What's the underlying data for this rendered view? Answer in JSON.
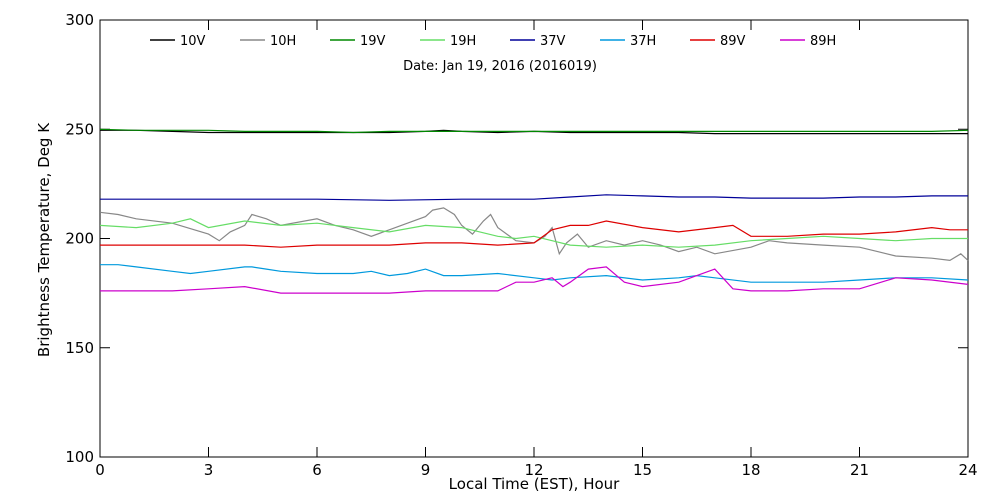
{
  "chart_data": {
    "type": "line",
    "subtitle": "Date: Jan 19, 2016 (2016019)",
    "xlabel": "Local Time (EST), Hour",
    "ylabel": "Brightness Temperature, Deg K",
    "xlim": [
      0,
      24
    ],
    "ylim": [
      100,
      300
    ],
    "xticks": [
      0,
      3,
      6,
      9,
      12,
      15,
      18,
      21,
      24
    ],
    "yticks": [
      100,
      150,
      200,
      250,
      300
    ],
    "grid": false,
    "legend_position": "top",
    "series": [
      {
        "name": "10V",
        "color": "#000000",
        "x": [
          0,
          1,
          2,
          3,
          4,
          5,
          6,
          7,
          8,
          9,
          9.5,
          10,
          11,
          12,
          13,
          14,
          15,
          16,
          17,
          18,
          19,
          20,
          21,
          22,
          23,
          24
        ],
        "y": [
          249.5,
          249.5,
          249.0,
          248.5,
          248.5,
          248.5,
          248.5,
          248.5,
          248.5,
          249.0,
          249.5,
          249.0,
          248.5,
          249.0,
          248.5,
          248.5,
          248.5,
          248.5,
          248.0,
          248.0,
          248.0,
          248.0,
          248.0,
          248.0,
          248.0,
          248.0
        ]
      },
      {
        "name": "10H",
        "color": "#888888",
        "x": [
          0,
          0.5,
          1,
          2,
          3,
          3.3,
          3.6,
          4,
          4.2,
          4.6,
          5,
          6,
          6.5,
          7,
          7.5,
          8,
          8.5,
          9,
          9.2,
          9.5,
          9.8,
          10,
          10.3,
          10.6,
          10.8,
          11,
          11.5,
          12,
          12.3,
          12.5,
          12.7,
          12.9,
          13.2,
          13.5,
          14,
          14.5,
          15,
          15.5,
          16,
          16.5,
          17,
          18,
          18.5,
          19,
          20,
          21,
          21.5,
          22,
          23,
          23.5,
          23.8,
          24
        ],
        "y": [
          212,
          211,
          209,
          207,
          202,
          199,
          203,
          206,
          211,
          209,
          206,
          209,
          206,
          204,
          201,
          204,
          207,
          210,
          213,
          214,
          211,
          206,
          202,
          208,
          211,
          205,
          199,
          198,
          201,
          205,
          193,
          198,
          202,
          196,
          199,
          197,
          199,
          197,
          194,
          196,
          193,
          196,
          199,
          198,
          197,
          196,
          194,
          192,
          191,
          190,
          193,
          190
        ]
      },
      {
        "name": "19V",
        "color": "#008800",
        "x": [
          0,
          1,
          2,
          3,
          4,
          5,
          6,
          7,
          8,
          9,
          10,
          11,
          12,
          13,
          14,
          15,
          16,
          17,
          18,
          19,
          20,
          21,
          22,
          23,
          24
        ],
        "y": [
          250,
          249.5,
          249.5,
          249.5,
          249.0,
          249.0,
          249.0,
          248.5,
          249.0,
          249.0,
          249.0,
          249.0,
          249.0,
          249.0,
          249.0,
          249.0,
          249.0,
          249.0,
          249.0,
          249.0,
          249.0,
          249.0,
          249.0,
          249.0,
          249.5
        ]
      },
      {
        "name": "19H",
        "color": "#66dd66",
        "x": [
          0,
          1,
          2,
          2.5,
          3,
          4,
          5,
          6,
          7,
          8,
          9,
          10,
          10.5,
          11,
          11.5,
          12,
          12.5,
          13,
          14,
          15,
          16,
          17,
          18,
          19,
          20,
          21,
          22,
          23,
          24
        ],
        "y": [
          206,
          205,
          207,
          209,
          205,
          208,
          206,
          207,
          205,
          203,
          206,
          205,
          203,
          201,
          200,
          201,
          199,
          197,
          196,
          197,
          196,
          197,
          199,
          200,
          201,
          200,
          199,
          200,
          200
        ]
      },
      {
        "name": "37V",
        "color": "#000099",
        "x": [
          0,
          2,
          4,
          6,
          8,
          10,
          11,
          12,
          13,
          14,
          15,
          16,
          17,
          18,
          19,
          20,
          21,
          22,
          23,
          24
        ],
        "y": [
          218,
          218,
          218,
          218,
          217.5,
          218,
          218,
          218,
          219,
          220,
          219.5,
          219,
          219,
          218.5,
          218.5,
          218.5,
          219,
          219,
          219.5,
          219.5
        ]
      },
      {
        "name": "37H",
        "color": "#0099dd",
        "x": [
          0,
          0.5,
          1,
          2,
          2.5,
          3,
          4,
          4.2,
          4.6,
          5,
          6,
          7,
          7.5,
          8,
          8.5,
          9,
          9.5,
          10,
          11,
          12,
          12.5,
          13,
          14,
          15,
          16,
          16.5,
          17,
          18,
          19,
          20,
          21,
          22,
          23,
          24
        ],
        "y": [
          188,
          188,
          187,
          185,
          184,
          185,
          187,
          187,
          186,
          185,
          184,
          184,
          185,
          183,
          184,
          186,
          183,
          183,
          184,
          182,
          181,
          182,
          183,
          181,
          182,
          183,
          182,
          180,
          180,
          180,
          181,
          182,
          182,
          181
        ]
      },
      {
        "name": "89V",
        "color": "#dd0000",
        "x": [
          0,
          1,
          2,
          3,
          4,
          5,
          6,
          7,
          8,
          9,
          10,
          11,
          12,
          12.5,
          13,
          13.5,
          14,
          15,
          16,
          17,
          17.5,
          18,
          19,
          20,
          21,
          22,
          23,
          23.5,
          24
        ],
        "y": [
          197,
          197,
          197,
          197,
          197,
          196,
          197,
          197,
          197,
          198,
          198,
          197,
          198,
          204,
          206,
          206,
          208,
          205,
          203,
          205,
          206,
          201,
          201,
          202,
          202,
          203,
          205,
          204,
          204
        ]
      },
      {
        "name": "89H",
        "color": "#cc00cc",
        "x": [
          0,
          1,
          2,
          3,
          4,
          5,
          6,
          7,
          8,
          9,
          10,
          11,
          11.5,
          12,
          12.5,
          12.8,
          13,
          13.5,
          14,
          14.5,
          15,
          16,
          16.5,
          17,
          17.5,
          18,
          19,
          20,
          21,
          22,
          23,
          24
        ],
        "y": [
          176,
          176,
          176,
          177,
          178,
          175,
          175,
          175,
          175,
          176,
          176,
          176,
          180,
          180,
          182,
          178,
          180,
          186,
          187,
          180,
          178,
          180,
          183,
          186,
          177,
          176,
          176,
          177,
          177,
          182,
          181,
          179
        ]
      }
    ]
  }
}
